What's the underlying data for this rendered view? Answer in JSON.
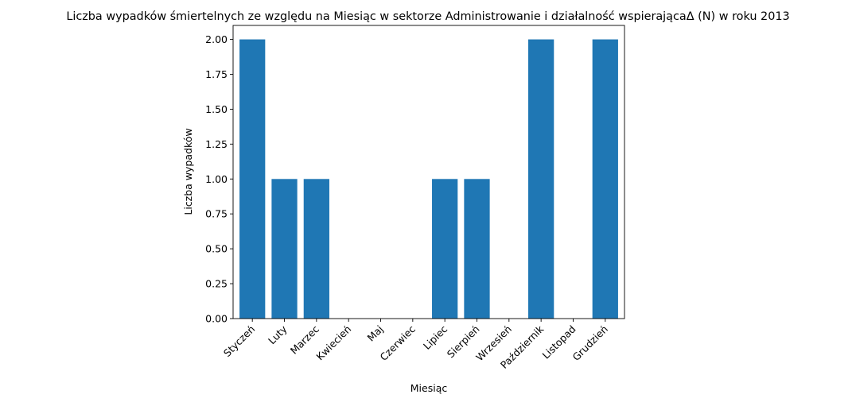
{
  "chart_data": {
    "type": "bar",
    "title": "Liczba wypadków śmiertelnych ze względu na Miesiąc w sektorze Administrowanie i działalność wspierającaΔ (N) w roku 2013",
    "xlabel": "Miesiąc",
    "ylabel": "Liczba wypadków",
    "categories": [
      "Styczeń",
      "Luty",
      "Marzec",
      "Kwiecień",
      "Maj",
      "Czerwiec",
      "Lipiec",
      "Sierpień",
      "Wrzesień",
      "Październik",
      "Listopad",
      "Grudzień"
    ],
    "values": [
      2,
      1,
      1,
      0,
      0,
      0,
      1,
      1,
      0,
      2,
      0,
      2
    ],
    "ylim": [
      0,
      2.1
    ],
    "yticks": [
      0.0,
      0.25,
      0.5,
      0.75,
      1.0,
      1.25,
      1.5,
      1.75,
      2.0
    ],
    "ytick_labels": [
      "0.00",
      "0.25",
      "0.50",
      "0.75",
      "1.00",
      "1.25",
      "1.50",
      "1.75",
      "2.00"
    ],
    "xtick_rotation": 45,
    "grid": false,
    "legend": "none",
    "bar_color": "#1f77b4"
  }
}
